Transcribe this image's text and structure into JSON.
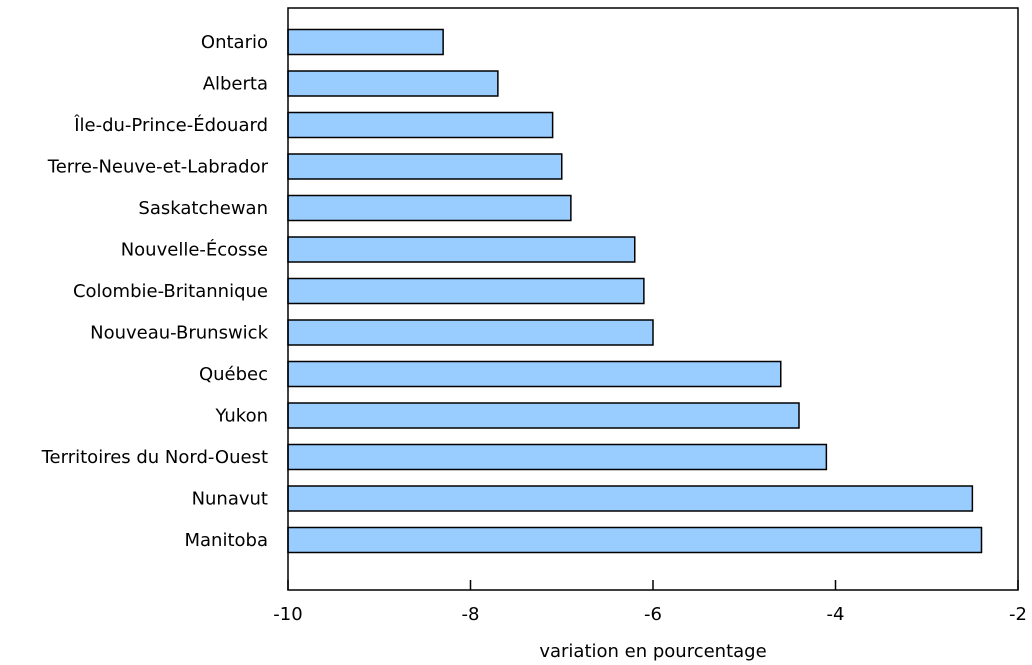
{
  "chart_data": {
    "type": "bar",
    "orientation": "horizontal",
    "title": "",
    "xlabel": "variation en pourcentage",
    "ylabel": "",
    "xlim": [
      -10,
      -2
    ],
    "xticks": [
      -10,
      -8,
      -6,
      -4,
      -2
    ],
    "xtick_labels": [
      "-10",
      "-8",
      "-6",
      "-4",
      "-2"
    ],
    "grid": false,
    "categories": [
      "Ontario",
      "Alberta",
      "Île-du-Prince-Édouard",
      "Terre-Neuve-et-Labrador",
      "Saskatchewan",
      "Nouvelle-Écosse",
      "Colombie-Britannique",
      "Nouveau-Brunswick",
      "Québec",
      "Yukon",
      "Territoires du Nord-Ouest",
      "Nunavut",
      "Manitoba"
    ],
    "values": [
      -8.3,
      -7.7,
      -7.1,
      -7.0,
      -6.9,
      -6.2,
      -6.1,
      -6.0,
      -4.6,
      -4.4,
      -4.1,
      -2.5,
      -2.4
    ],
    "colors": {
      "bar_fill": "#99ccff",
      "bar_stroke": "#000000"
    }
  }
}
